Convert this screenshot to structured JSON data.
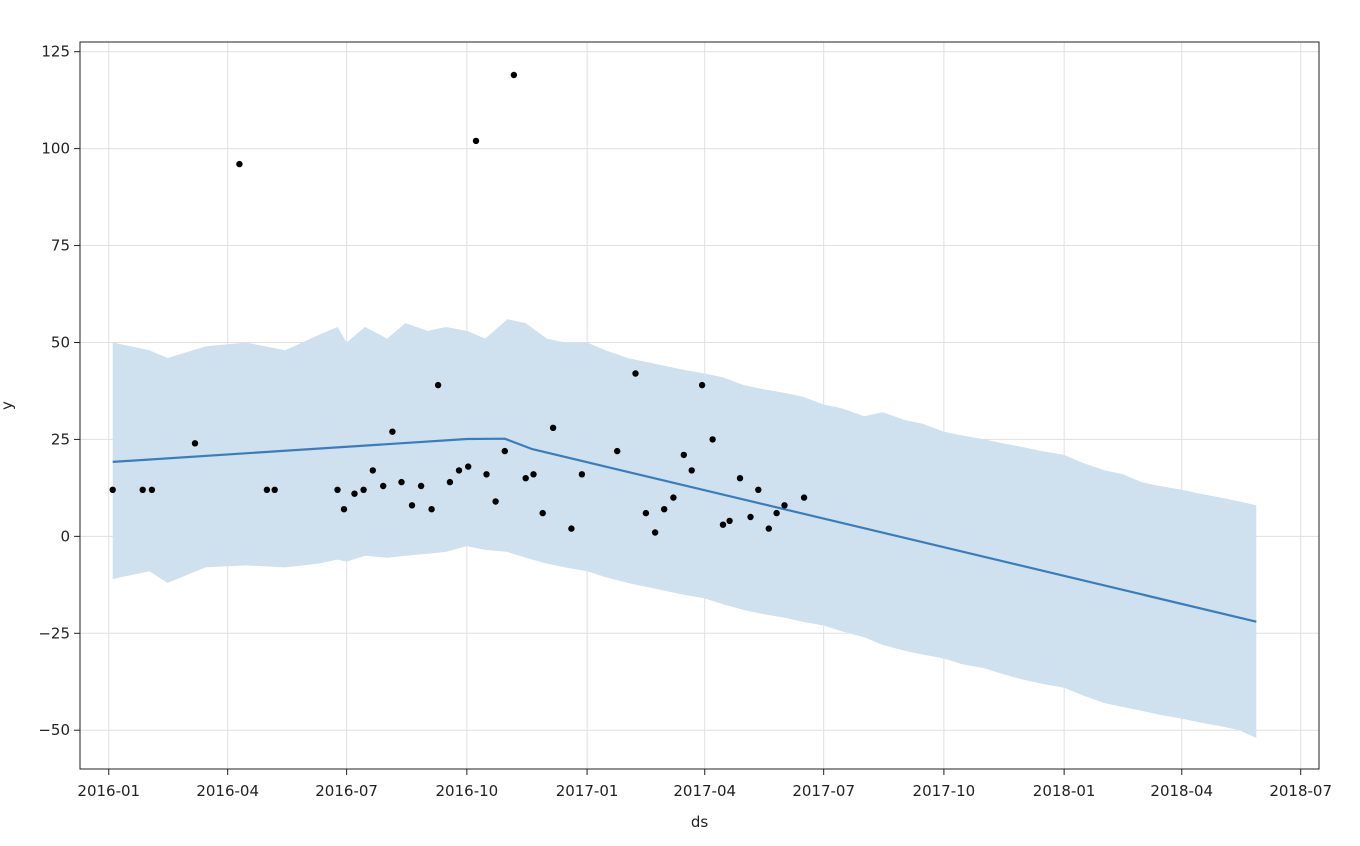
{
  "chart_data": {
    "type": "scatter",
    "title": "",
    "xlabel": "ds",
    "ylabel": "y",
    "x_axis_type": "date",
    "xlim": [
      "2015-12-10",
      "2018-07-15"
    ],
    "ylim": [
      -60,
      127.5
    ],
    "grid": true,
    "legend": "none",
    "x_tick_values": [
      "2016-01-01",
      "2016-04-01",
      "2016-07-01",
      "2016-10-01",
      "2017-01-01",
      "2017-04-01",
      "2017-07-01",
      "2017-10-01",
      "2018-01-01",
      "2018-04-01",
      "2018-07-01"
    ],
    "x_tick_labels": [
      "2016-01",
      "2016-04",
      "2016-07",
      "2016-10",
      "2017-01",
      "2017-04",
      "2017-07",
      "2017-10",
      "2018-01",
      "2018-04",
      "2018-07"
    ],
    "y_tick_values": [
      -50,
      -25,
      0,
      25,
      50,
      75,
      100,
      125
    ],
    "y_tick_labels": [
      "−50",
      "−25",
      "0",
      "25",
      "50",
      "75",
      "100",
      "125"
    ],
    "series": [
      {
        "name": "",
        "kind": "observed",
        "color": "#000000",
        "points": [
          [
            "2016-01-04",
            12
          ],
          [
            "2016-01-27",
            12
          ],
          [
            "2016-02-03",
            12
          ],
          [
            "2016-03-07",
            24
          ],
          [
            "2016-04-10",
            96
          ],
          [
            "2016-05-01",
            12
          ],
          [
            "2016-05-07",
            12
          ],
          [
            "2016-06-24",
            12
          ],
          [
            "2016-06-29",
            7
          ],
          [
            "2016-07-07",
            11
          ],
          [
            "2016-07-14",
            12
          ],
          [
            "2016-07-21",
            17
          ],
          [
            "2016-07-29",
            13
          ],
          [
            "2016-08-05",
            27
          ],
          [
            "2016-08-12",
            14
          ],
          [
            "2016-08-20",
            8
          ],
          [
            "2016-08-27",
            13
          ],
          [
            "2016-09-04",
            7
          ],
          [
            "2016-09-09",
            39
          ],
          [
            "2016-09-18",
            14
          ],
          [
            "2016-09-25",
            17
          ],
          [
            "2016-10-02",
            18
          ],
          [
            "2016-10-08",
            102
          ],
          [
            "2016-10-16",
            16
          ],
          [
            "2016-10-23",
            9
          ],
          [
            "2016-10-30",
            22
          ],
          [
            "2016-11-06",
            119
          ],
          [
            "2016-11-15",
            15
          ],
          [
            "2016-11-21",
            16
          ],
          [
            "2016-11-28",
            6
          ],
          [
            "2016-12-06",
            28
          ],
          [
            "2016-12-20",
            2
          ],
          [
            "2016-12-28",
            16
          ],
          [
            "2017-01-24",
            22
          ],
          [
            "2017-02-07",
            42
          ],
          [
            "2017-02-15",
            6
          ],
          [
            "2017-02-22",
            1
          ],
          [
            "2017-03-01",
            7
          ],
          [
            "2017-03-08",
            10
          ],
          [
            "2017-03-16",
            21
          ],
          [
            "2017-03-22",
            17
          ],
          [
            "2017-03-30",
            39
          ],
          [
            "2017-04-07",
            25
          ],
          [
            "2017-04-15",
            3
          ],
          [
            "2017-04-20",
            4
          ],
          [
            "2017-04-28",
            15
          ],
          [
            "2017-05-06",
            5
          ],
          [
            "2017-05-12",
            12
          ],
          [
            "2017-05-20",
            2
          ],
          [
            "2017-05-26",
            6
          ],
          [
            "2017-06-01",
            8
          ],
          [
            "2017-06-16",
            10
          ]
        ]
      },
      {
        "name": "",
        "kind": "trend",
        "color": "#3A7DBF",
        "points": [
          [
            "2016-01-04",
            19.2
          ],
          [
            "2016-10-01",
            25.1
          ],
          [
            "2016-10-30",
            25.2
          ],
          [
            "2016-11-20",
            22.5
          ],
          [
            "2018-05-28",
            -22
          ]
        ]
      },
      {
        "name": "",
        "kind": "uncertainty_band",
        "color": "#CFE0EE",
        "x": [
          "2016-01-04",
          "2016-02-01",
          "2016-02-15",
          "2016-03-15",
          "2016-04-15",
          "2016-05-15",
          "2016-06-10",
          "2016-06-24",
          "2016-07-01",
          "2016-07-15",
          "2016-08-01",
          "2016-08-15",
          "2016-09-01",
          "2016-09-15",
          "2016-10-01",
          "2016-10-15",
          "2016-11-01",
          "2016-11-15",
          "2016-12-01",
          "2016-12-15",
          "2017-01-01",
          "2017-01-15",
          "2017-02-01",
          "2017-02-15",
          "2017-03-01",
          "2017-03-15",
          "2017-04-01",
          "2017-04-15",
          "2017-05-01",
          "2017-05-15",
          "2017-06-01",
          "2017-06-15",
          "2017-07-01",
          "2017-07-15",
          "2017-08-01",
          "2017-08-15",
          "2017-09-01",
          "2017-09-15",
          "2017-10-01",
          "2017-10-15",
          "2017-11-01",
          "2017-11-15",
          "2017-12-01",
          "2017-12-15",
          "2018-01-01",
          "2018-01-15",
          "2018-02-01",
          "2018-02-15",
          "2018-03-01",
          "2018-03-15",
          "2018-04-01",
          "2018-04-15",
          "2018-05-01",
          "2018-05-15",
          "2018-05-28"
        ],
        "upper": [
          50,
          48,
          46,
          49,
          50,
          48,
          52,
          54,
          50,
          54,
          51,
          55,
          53,
          54,
          53,
          51,
          56,
          55,
          51,
          50,
          50,
          48,
          46,
          45,
          44,
          43,
          42,
          41,
          39,
          38,
          37,
          36,
          34,
          33,
          31,
          32,
          30,
          29,
          27,
          26,
          25,
          24,
          23,
          22,
          21,
          19,
          17,
          16,
          14,
          13,
          12,
          11,
          10,
          9,
          8
        ],
        "lower": [
          -11,
          -9,
          -12,
          -8,
          -7.5,
          -8,
          -7,
          -6,
          -6.5,
          -5,
          -5.5,
          -5,
          -4.5,
          -4,
          -2.5,
          -3.5,
          -4,
          -5.5,
          -7,
          -8,
          -9,
          -10.5,
          -12,
          -13,
          -14,
          -15,
          -16,
          -17.5,
          -19,
          -20,
          -21,
          -22,
          -23,
          -24.5,
          -26,
          -28,
          -29.5,
          -30.5,
          -31.5,
          -33,
          -34,
          -35.5,
          -37,
          -38,
          -39,
          -41,
          -43,
          -44,
          -45,
          -46,
          -47,
          -48,
          -49,
          -50,
          -52
        ]
      }
    ]
  }
}
